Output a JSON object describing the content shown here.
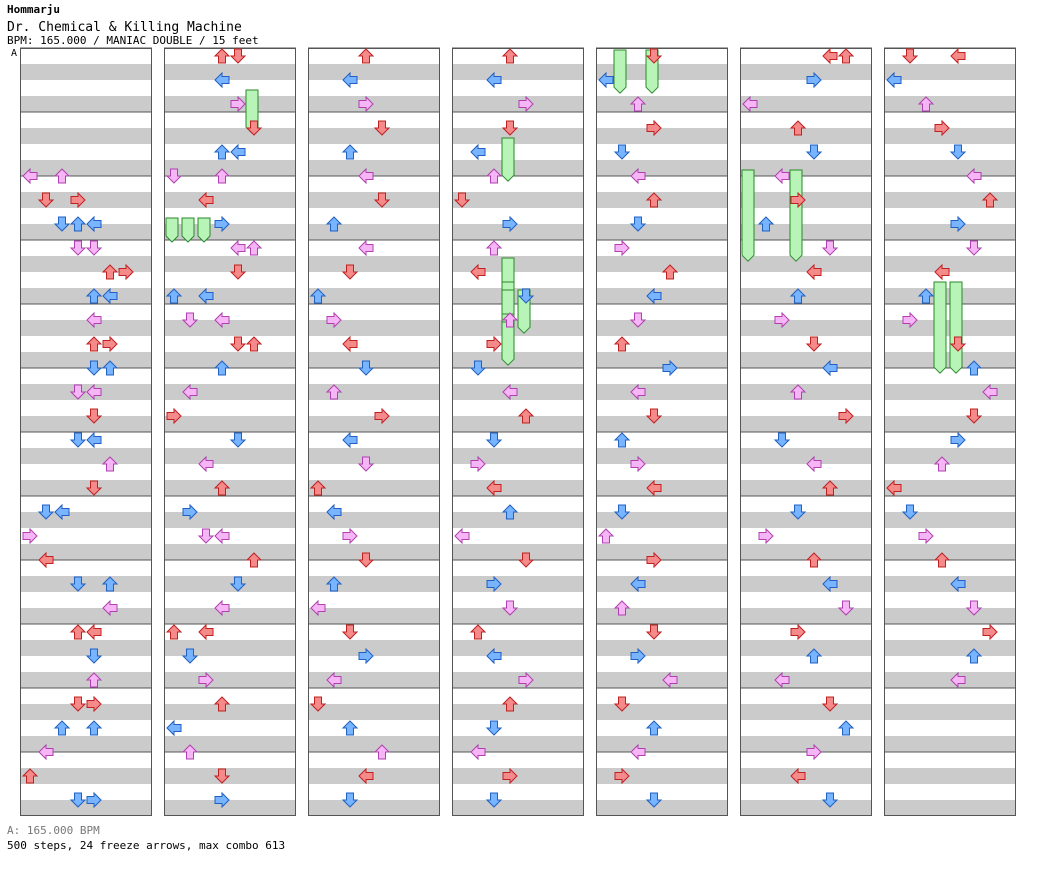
{
  "header": {
    "brand": "Hommarju",
    "song_title": "Dr. Chemical & Killing Machine",
    "meta": "BPM: 165.000 / MANIAC DOUBLE / 15 feet",
    "section_marker": "A"
  },
  "footer": {
    "bpm_line": "A: 165.000 BPM",
    "stats": "500 steps, 24 freeze arrows, max combo 613"
  },
  "palette": {
    "red": "#f48a8a",
    "blue": "#78b4ff",
    "pink": "#f5b6f5",
    "green": "#b8f3b8",
    "band": "#cbcbcb",
    "border": "#555555"
  },
  "chart_data": {
    "type": "step-chart",
    "columns": 7,
    "measures_per_column": 12,
    "lanes": 8,
    "arrow_kinds": [
      "left",
      "down",
      "up",
      "right"
    ],
    "notes": [
      [
        0,
        5,
        0,
        "left"
      ],
      [
        0,
        5,
        2,
        "up"
      ],
      [
        0,
        6,
        1,
        "down"
      ],
      [
        0,
        6,
        3,
        "right"
      ],
      [
        0,
        7,
        2,
        "down"
      ],
      [
        0,
        7,
        3,
        "up"
      ],
      [
        0,
        7,
        4,
        "left"
      ],
      [
        0,
        8,
        3,
        "down"
      ],
      [
        0,
        8,
        4,
        "down"
      ],
      [
        0,
        9,
        5,
        "up"
      ],
      [
        0,
        9,
        6,
        "right"
      ],
      [
        0,
        10,
        4,
        "up"
      ],
      [
        0,
        10,
        5,
        "left"
      ],
      [
        0,
        11,
        4,
        "left"
      ],
      [
        0,
        12,
        4,
        "up"
      ],
      [
        0,
        12,
        5,
        "right"
      ],
      [
        0,
        13,
        4,
        "down"
      ],
      [
        0,
        13,
        5,
        "up"
      ],
      [
        0,
        14,
        3,
        "down"
      ],
      [
        0,
        14,
        4,
        "left"
      ],
      [
        0,
        15,
        4,
        "down"
      ],
      [
        0,
        16,
        3,
        "down"
      ],
      [
        0,
        16,
        4,
        "left"
      ],
      [
        0,
        17,
        5,
        "up"
      ],
      [
        0,
        18,
        4,
        "down"
      ],
      [
        0,
        19,
        1,
        "down"
      ],
      [
        0,
        19,
        2,
        "left"
      ],
      [
        0,
        20,
        0,
        "right"
      ],
      [
        0,
        21,
        1,
        "left"
      ],
      [
        0,
        22,
        3,
        "down"
      ],
      [
        0,
        22,
        5,
        "up"
      ],
      [
        0,
        23,
        5,
        "left"
      ],
      [
        0,
        24,
        3,
        "up"
      ],
      [
        0,
        24,
        4,
        "left"
      ],
      [
        0,
        25,
        4,
        "down"
      ],
      [
        0,
        26,
        4,
        "up"
      ],
      [
        0,
        27,
        3,
        "down"
      ],
      [
        0,
        27,
        4,
        "right"
      ],
      [
        0,
        28,
        2,
        "up"
      ],
      [
        0,
        28,
        4,
        "up"
      ],
      [
        0,
        29,
        1,
        "left"
      ],
      [
        0,
        30,
        0,
        "up"
      ],
      [
        0,
        31,
        3,
        "down"
      ],
      [
        0,
        31,
        4,
        "right"
      ],
      [
        1,
        0,
        3,
        "up"
      ],
      [
        1,
        0,
        4,
        "down"
      ],
      [
        1,
        1,
        3,
        "left"
      ],
      [
        1,
        2,
        4,
        "right"
      ],
      [
        1,
        3,
        5,
        "down"
      ],
      [
        1,
        4,
        3,
        "up"
      ],
      [
        1,
        4,
        4,
        "left"
      ],
      [
        1,
        5,
        0,
        "down"
      ],
      [
        1,
        5,
        3,
        "up"
      ],
      [
        1,
        6,
        2,
        "left"
      ],
      [
        1,
        7,
        3,
        "right"
      ],
      [
        1,
        8,
        4,
        "left"
      ],
      [
        1,
        8,
        5,
        "up"
      ],
      [
        1,
        9,
        4,
        "down"
      ],
      [
        1,
        10,
        0,
        "up"
      ],
      [
        1,
        10,
        2,
        "left"
      ],
      [
        1,
        11,
        1,
        "down"
      ],
      [
        1,
        11,
        3,
        "left"
      ],
      [
        1,
        12,
        4,
        "down"
      ],
      [
        1,
        12,
        5,
        "up"
      ],
      [
        1,
        13,
        3,
        "up"
      ],
      [
        1,
        14,
        1,
        "left"
      ],
      [
        1,
        15,
        0,
        "right"
      ],
      [
        1,
        16,
        4,
        "down"
      ],
      [
        1,
        17,
        2,
        "left"
      ],
      [
        1,
        18,
        3,
        "up"
      ],
      [
        1,
        19,
        1,
        "right"
      ],
      [
        1,
        20,
        2,
        "down"
      ],
      [
        1,
        20,
        3,
        "left"
      ],
      [
        1,
        21,
        5,
        "up"
      ],
      [
        1,
        22,
        4,
        "down"
      ],
      [
        1,
        23,
        3,
        "left"
      ],
      [
        1,
        24,
        0,
        "up"
      ],
      [
        1,
        24,
        2,
        "left"
      ],
      [
        1,
        25,
        1,
        "down"
      ],
      [
        1,
        26,
        2,
        "right"
      ],
      [
        1,
        27,
        3,
        "up"
      ],
      [
        1,
        28,
        0,
        "left"
      ],
      [
        1,
        29,
        1,
        "up"
      ],
      [
        1,
        30,
        3,
        "down"
      ],
      [
        1,
        31,
        3,
        "right"
      ],
      [
        2,
        0,
        3,
        "up"
      ],
      [
        2,
        1,
        2,
        "left"
      ],
      [
        2,
        2,
        3,
        "right"
      ],
      [
        2,
        3,
        4,
        "down"
      ],
      [
        2,
        4,
        2,
        "up"
      ],
      [
        2,
        5,
        3,
        "left"
      ],
      [
        2,
        6,
        4,
        "down"
      ],
      [
        2,
        7,
        1,
        "up"
      ],
      [
        2,
        8,
        3,
        "left"
      ],
      [
        2,
        9,
        2,
        "down"
      ],
      [
        2,
        10,
        0,
        "up"
      ],
      [
        2,
        11,
        1,
        "right"
      ],
      [
        2,
        12,
        2,
        "left"
      ],
      [
        2,
        13,
        3,
        "down"
      ],
      [
        2,
        14,
        1,
        "up"
      ],
      [
        2,
        15,
        4,
        "right"
      ],
      [
        2,
        16,
        2,
        "left"
      ],
      [
        2,
        17,
        3,
        "down"
      ],
      [
        2,
        18,
        0,
        "up"
      ],
      [
        2,
        19,
        1,
        "left"
      ],
      [
        2,
        20,
        2,
        "right"
      ],
      [
        2,
        21,
        3,
        "down"
      ],
      [
        2,
        22,
        1,
        "up"
      ],
      [
        2,
        23,
        0,
        "left"
      ],
      [
        2,
        24,
        2,
        "down"
      ],
      [
        2,
        25,
        3,
        "right"
      ],
      [
        2,
        26,
        1,
        "left"
      ],
      [
        2,
        27,
        0,
        "down"
      ],
      [
        2,
        28,
        2,
        "up"
      ],
      [
        2,
        29,
        4,
        "up"
      ],
      [
        2,
        30,
        3,
        "left"
      ],
      [
        2,
        31,
        2,
        "down"
      ],
      [
        3,
        0,
        3,
        "up"
      ],
      [
        3,
        1,
        2,
        "left"
      ],
      [
        3,
        2,
        4,
        "right"
      ],
      [
        3,
        3,
        3,
        "down"
      ],
      [
        3,
        4,
        1,
        "left"
      ],
      [
        3,
        5,
        2,
        "up"
      ],
      [
        3,
        6,
        0,
        "down"
      ],
      [
        3,
        7,
        3,
        "right"
      ],
      [
        3,
        8,
        2,
        "up"
      ],
      [
        3,
        9,
        1,
        "left"
      ],
      [
        3,
        10,
        4,
        "down"
      ],
      [
        3,
        11,
        3,
        "up"
      ],
      [
        3,
        12,
        2,
        "right"
      ],
      [
        3,
        13,
        1,
        "down"
      ],
      [
        3,
        14,
        3,
        "left"
      ],
      [
        3,
        15,
        4,
        "up"
      ],
      [
        3,
        16,
        2,
        "down"
      ],
      [
        3,
        17,
        1,
        "right"
      ],
      [
        3,
        18,
        2,
        "left"
      ],
      [
        3,
        19,
        3,
        "up"
      ],
      [
        3,
        20,
        0,
        "left"
      ],
      [
        3,
        21,
        4,
        "down"
      ],
      [
        3,
        22,
        2,
        "right"
      ],
      [
        3,
        23,
        3,
        "down"
      ],
      [
        3,
        24,
        1,
        "up"
      ],
      [
        3,
        25,
        2,
        "left"
      ],
      [
        3,
        26,
        4,
        "right"
      ],
      [
        3,
        27,
        3,
        "up"
      ],
      [
        3,
        28,
        2,
        "down"
      ],
      [
        3,
        29,
        1,
        "left"
      ],
      [
        3,
        30,
        3,
        "right"
      ],
      [
        3,
        31,
        2,
        "down"
      ],
      [
        4,
        0,
        3,
        "down"
      ],
      [
        4,
        1,
        0,
        "left"
      ],
      [
        4,
        2,
        2,
        "up"
      ],
      [
        4,
        3,
        3,
        "right"
      ],
      [
        4,
        4,
        1,
        "down"
      ],
      [
        4,
        5,
        2,
        "left"
      ],
      [
        4,
        6,
        3,
        "up"
      ],
      [
        4,
        7,
        2,
        "down"
      ],
      [
        4,
        8,
        1,
        "right"
      ],
      [
        4,
        9,
        4,
        "up"
      ],
      [
        4,
        10,
        3,
        "left"
      ],
      [
        4,
        11,
        2,
        "down"
      ],
      [
        4,
        12,
        1,
        "up"
      ],
      [
        4,
        13,
        4,
        "right"
      ],
      [
        4,
        14,
        2,
        "left"
      ],
      [
        4,
        15,
        3,
        "down"
      ],
      [
        4,
        16,
        1,
        "up"
      ],
      [
        4,
        17,
        2,
        "right"
      ],
      [
        4,
        18,
        3,
        "left"
      ],
      [
        4,
        19,
        1,
        "down"
      ],
      [
        4,
        20,
        0,
        "up"
      ],
      [
        4,
        21,
        3,
        "right"
      ],
      [
        4,
        22,
        2,
        "left"
      ],
      [
        4,
        23,
        1,
        "up"
      ],
      [
        4,
        24,
        3,
        "down"
      ],
      [
        4,
        25,
        2,
        "right"
      ],
      [
        4,
        26,
        4,
        "left"
      ],
      [
        4,
        27,
        1,
        "down"
      ],
      [
        4,
        28,
        3,
        "up"
      ],
      [
        4,
        29,
        2,
        "left"
      ],
      [
        4,
        30,
        1,
        "right"
      ],
      [
        4,
        31,
        3,
        "down"
      ],
      [
        5,
        0,
        5,
        "left"
      ],
      [
        5,
        0,
        6,
        "up"
      ],
      [
        5,
        1,
        4,
        "right"
      ],
      [
        5,
        2,
        0,
        "left"
      ],
      [
        5,
        3,
        3,
        "up"
      ],
      [
        5,
        4,
        4,
        "down"
      ],
      [
        5,
        5,
        2,
        "left"
      ],
      [
        5,
        6,
        3,
        "right"
      ],
      [
        5,
        7,
        1,
        "up"
      ],
      [
        5,
        8,
        5,
        "down"
      ],
      [
        5,
        9,
        4,
        "left"
      ],
      [
        5,
        10,
        3,
        "up"
      ],
      [
        5,
        11,
        2,
        "right"
      ],
      [
        5,
        12,
        4,
        "down"
      ],
      [
        5,
        13,
        5,
        "left"
      ],
      [
        5,
        14,
        3,
        "up"
      ],
      [
        5,
        15,
        6,
        "right"
      ],
      [
        5,
        16,
        2,
        "down"
      ],
      [
        5,
        17,
        4,
        "left"
      ],
      [
        5,
        18,
        5,
        "up"
      ],
      [
        5,
        19,
        3,
        "down"
      ],
      [
        5,
        20,
        1,
        "right"
      ],
      [
        5,
        21,
        4,
        "up"
      ],
      [
        5,
        22,
        5,
        "left"
      ],
      [
        5,
        23,
        6,
        "down"
      ],
      [
        5,
        24,
        3,
        "right"
      ],
      [
        5,
        25,
        4,
        "up"
      ],
      [
        5,
        26,
        2,
        "left"
      ],
      [
        5,
        27,
        5,
        "down"
      ],
      [
        5,
        28,
        6,
        "up"
      ],
      [
        5,
        29,
        4,
        "right"
      ],
      [
        5,
        30,
        3,
        "left"
      ],
      [
        5,
        31,
        5,
        "down"
      ],
      [
        6,
        0,
        1,
        "down"
      ],
      [
        6,
        0,
        4,
        "left"
      ],
      [
        6,
        1,
        0,
        "left"
      ],
      [
        6,
        2,
        2,
        "up"
      ],
      [
        6,
        3,
        3,
        "right"
      ],
      [
        6,
        4,
        4,
        "down"
      ],
      [
        6,
        5,
        5,
        "left"
      ],
      [
        6,
        6,
        6,
        "up"
      ],
      [
        6,
        7,
        4,
        "right"
      ],
      [
        6,
        8,
        5,
        "down"
      ],
      [
        6,
        9,
        3,
        "left"
      ],
      [
        6,
        10,
        2,
        "up"
      ],
      [
        6,
        11,
        1,
        "right"
      ],
      [
        6,
        12,
        4,
        "down"
      ],
      [
        6,
        13,
        5,
        "up"
      ],
      [
        6,
        14,
        6,
        "left"
      ],
      [
        6,
        15,
        5,
        "down"
      ],
      [
        6,
        16,
        4,
        "right"
      ],
      [
        6,
        17,
        3,
        "up"
      ],
      [
        6,
        18,
        0,
        "left"
      ],
      [
        6,
        19,
        1,
        "down"
      ],
      [
        6,
        20,
        2,
        "right"
      ],
      [
        6,
        21,
        3,
        "up"
      ],
      [
        6,
        22,
        4,
        "left"
      ],
      [
        6,
        23,
        5,
        "down"
      ],
      [
        6,
        24,
        6,
        "right"
      ],
      [
        6,
        25,
        5,
        "up"
      ],
      [
        6,
        26,
        4,
        "left"
      ]
    ],
    "freezes": [
      [
        1,
        5,
        5,
        0.9
      ],
      [
        1,
        21,
        0,
        0.5
      ],
      [
        1,
        21,
        1,
        0.5
      ],
      [
        1,
        21,
        2,
        0.5
      ],
      [
        3,
        11,
        3,
        0.9
      ],
      [
        3,
        26,
        3,
        0.9
      ],
      [
        3,
        29,
        3,
        0.9
      ],
      [
        3,
        30,
        3,
        0.9
      ],
      [
        3,
        30,
        4,
        0.9
      ],
      [
        3,
        33,
        3,
        0.9
      ],
      [
        3,
        34,
        3,
        0.9
      ],
      [
        4,
        0,
        1,
        0.9
      ],
      [
        4,
        0,
        3,
        0.9
      ],
      [
        5,
        15,
        0,
        1.9
      ],
      [
        5,
        15,
        3,
        1.9
      ],
      [
        6,
        29,
        3,
        1.9
      ],
      [
        6,
        29,
        4,
        1.9
      ],
      [
        0,
        0,
        0,
        0
      ],
      [
        0,
        0,
        0,
        0
      ],
      [
        0,
        0,
        0,
        0
      ],
      [
        0,
        0,
        0,
        0
      ],
      [
        0,
        0,
        0,
        0
      ],
      [
        0,
        0,
        0,
        0
      ],
      [
        0,
        0,
        0,
        0
      ]
    ]
  }
}
